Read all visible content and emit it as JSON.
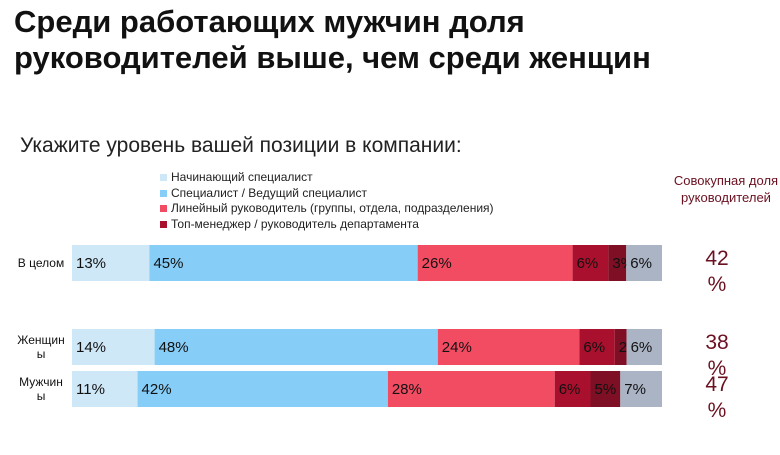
{
  "title": "Среди работающих мужчин доля руководителей выше, чем среди женщин",
  "subtitle": "Укажите уровень вашей позиции в компании:",
  "share_header": "Совокупная доля руководителей",
  "colors": {
    "entry": "#cfe8f8",
    "specialist": "#86cdf7",
    "line_manager": "#f24c63",
    "top_manager": "#a8102e",
    "other": "#aab4c4"
  },
  "chart_data": {
    "type": "bar",
    "orientation": "horizontal",
    "stacked": true,
    "title": "Среди работающих мужчин доля руководителей выше, чем среди женщин",
    "subtitle": "Укажите уровень вашей позиции в компании:",
    "unit": "%",
    "categories": [
      {
        "label_lines": [
          "В целом"
        ]
      },
      {
        "label_lines": [
          "Женщин",
          "ы"
        ]
      },
      {
        "label_lines": [
          "Мужчин",
          "ы"
        ]
      }
    ],
    "series": [
      {
        "name": "Начинающий специалист",
        "color": "#cfe8f8",
        "values": [
          13,
          14,
          11
        ],
        "labels": [
          "13%",
          "14%",
          "11%"
        ]
      },
      {
        "name": "Специалист / Ведущий специалист",
        "color": "#86cdf7",
        "values": [
          45,
          48,
          42
        ],
        "labels": [
          "45%",
          "48%",
          "42%"
        ]
      },
      {
        "name": "Линейный руководитель (группы, отдела, подразделения)",
        "color": "#f24c63",
        "values": [
          26,
          24,
          28
        ],
        "labels": [
          "26%",
          "24%",
          "28%"
        ]
      },
      {
        "name": "Топ-менеджер / руководитель департамента",
        "color": "#a8102e",
        "values": [
          6,
          6,
          6
        ],
        "labels": [
          "6%",
          "6%",
          "6%"
        ]
      },
      {
        "color": "#7e0f24",
        "values": [
          3,
          2,
          5
        ],
        "labels": [
          "3%",
          "2%",
          "5%"
        ]
      },
      {
        "color": "#aab4c4",
        "values": [
          6,
          6,
          7
        ],
        "labels": [
          "6%",
          "6%",
          "7%"
        ]
      }
    ],
    "cumulative_share": [
      {
        "value_text": "42",
        "unit_text": "%"
      },
      {
        "value_text": "38",
        "unit_text": "%"
      },
      {
        "value_text": "47",
        "unit_text": "%"
      }
    ],
    "legend_position": "top",
    "grid": false
  }
}
